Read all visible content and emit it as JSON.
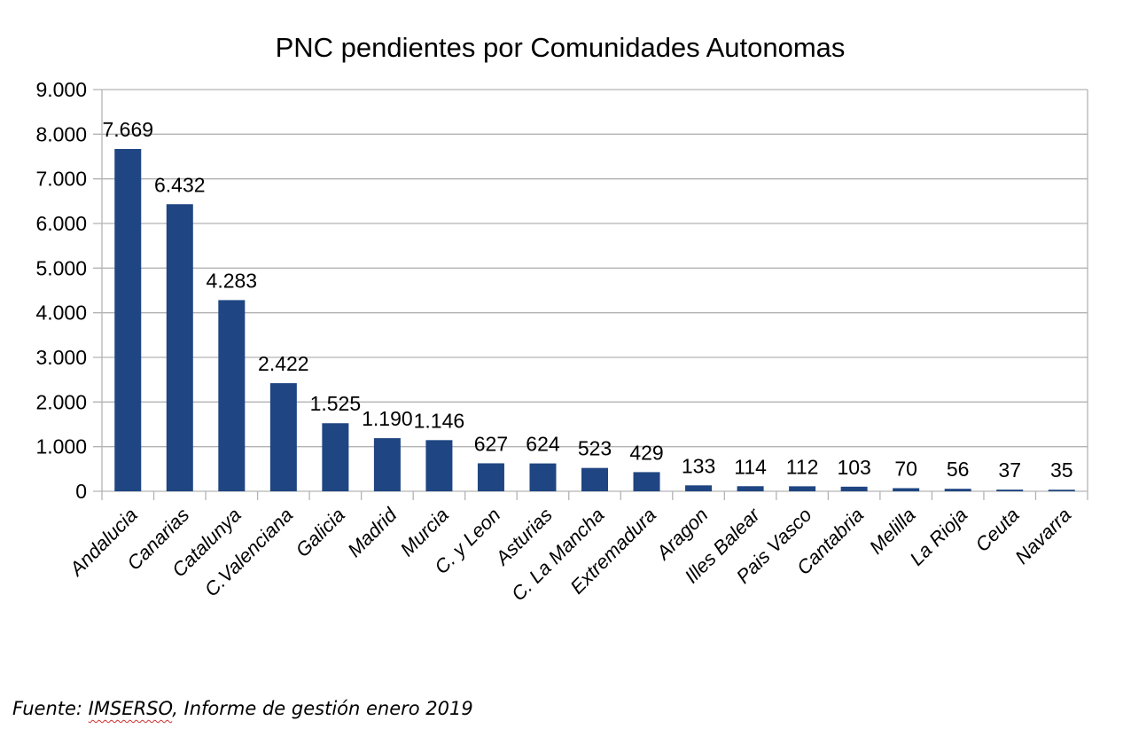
{
  "chart_data": {
    "type": "bar",
    "title": "PNC pendientes por Comunidades Autonomas",
    "xlabel": "",
    "ylabel": "",
    "ylim": [
      0,
      9000
    ],
    "yticks": [
      "0",
      "1.000",
      "2.000",
      "3.000",
      "4.000",
      "5.000",
      "6.000",
      "7.000",
      "8.000",
      "9.000"
    ],
    "grid": true,
    "categories": [
      "Andalucia",
      "Canarias",
      "Catalunya",
      "C.Valenciana",
      "Galicia",
      "Madrid",
      "Murcia",
      "C. y Leon",
      "Asturias",
      "C. La Mancha",
      "Extremadura",
      "Aragon",
      "Illes Balear",
      "Pais Vasco",
      "Cantabria",
      "Melilla",
      "La Rioja",
      "Ceuta",
      "Navarra"
    ],
    "values": [
      7669,
      6432,
      4283,
      2422,
      1525,
      1190,
      1146,
      627,
      624,
      523,
      429,
      133,
      114,
      112,
      103,
      70,
      56,
      37,
      35
    ],
    "data_labels": [
      "7.669",
      "6.432",
      "4.283",
      "2.422",
      "1.525",
      "1.190",
      "1.146",
      "627",
      "624",
      "523",
      "429",
      "133",
      "114",
      "112",
      "103",
      "70",
      "56",
      "37",
      "35"
    ],
    "bar_color": "#1f4582"
  },
  "footer": {
    "prefix": "Fuente: ",
    "source_name": "IMSERSO",
    "suffix": ", Informe de gestión enero 2019"
  }
}
